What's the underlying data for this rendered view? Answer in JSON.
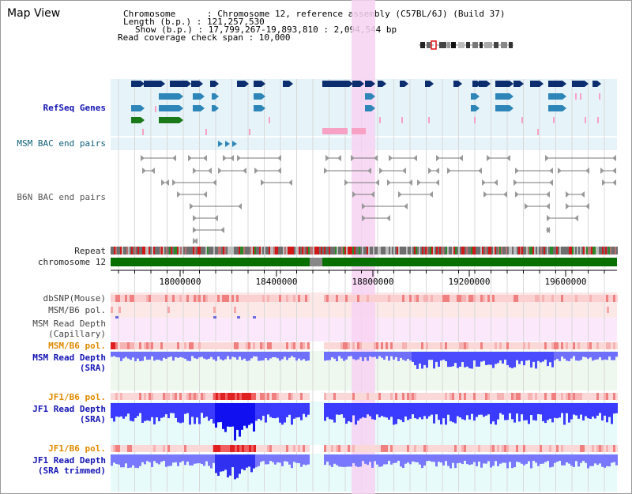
{
  "title": "Map View",
  "info": {
    "chromosome": "Chromosome      : Chromosome 12, reference assembly (C57BL/6J) (Build 37)",
    "length": "Length (b.p.) : 121,257,530",
    "show": "Show (b.p.) : 17,799,267-19,893,810 : 2,094,544 bp",
    "coverage": "Read coverage check span : 10,000"
  },
  "tracks": {
    "refseq": "RefSeq Genes",
    "msm_bac": "MSM BAC end pairs",
    "b6n_bac": "B6N BAC end pairs",
    "repeat": "Repeat",
    "chromosome": "chromosome 12",
    "dbsnp": "dbSNP(Mouse)",
    "msm_b6_pol_1": "MSM/B6 pol.",
    "msm_depth_cap_1": "MSM Read Depth",
    "msm_depth_cap_2": "(Capillary)",
    "msm_b6_pol_2": "MSM/B6 pol.",
    "msm_depth_sra_1": "MSM Read Depth",
    "msm_depth_sra_2": "(SRA)",
    "jf1_b6_pol_1": "JF1/B6 pol.",
    "jf1_depth_sra_1": "JF1 Read Depth",
    "jf1_depth_sra_2": "(SRA)",
    "jf1_b6_pol_2": "JF1/B6 pol.",
    "jf1_depth_trim_1": "JF1 Read Depth",
    "jf1_depth_trim_2": "(SRA trimmed)"
  },
  "axis": {
    "ticks": [
      "18000000",
      "18400000",
      "18800000",
      "19200000",
      "19600000"
    ]
  },
  "colors": {
    "highlight": "#f7d2f2",
    "refseq_bg": "#e6f4fa",
    "gene_dark": "#0c2d6e",
    "gene_mid": "#2e86b8",
    "gene_green": "#1a7a1a",
    "chromosome": "#087000",
    "depth_blue": "#2a2aff",
    "pol_red": "#e02020"
  }
}
